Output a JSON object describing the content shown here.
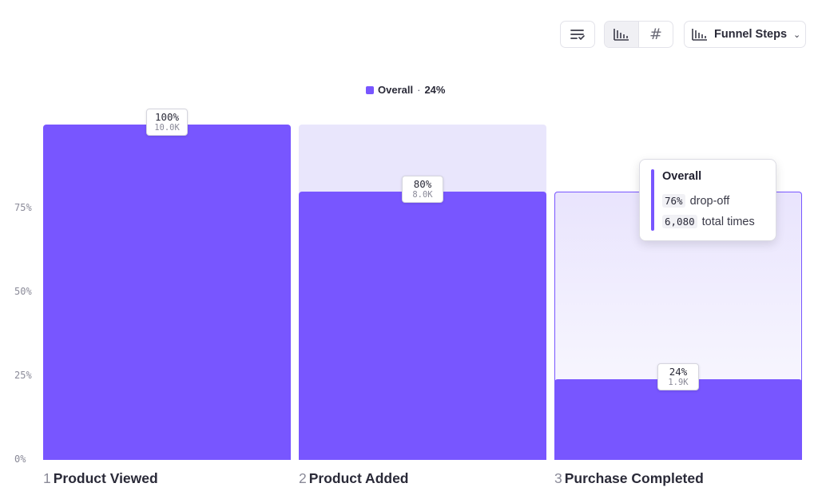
{
  "toolbar": {
    "sort_icon": "sort-list-icon",
    "view_toggle": {
      "active": "bar-chart",
      "options": [
        "bar-chart-icon",
        "hash-icon"
      ],
      "hash_glyph": "#"
    },
    "funnel_dropdown": {
      "label": "Funnel Steps",
      "icon": "bar-chart-icon",
      "chevron": "⌄"
    }
  },
  "legend": {
    "series": "Overall",
    "separator": "·",
    "value": "24%",
    "color": "#7856ff"
  },
  "chart_data": {
    "type": "bar",
    "title": "",
    "xlabel": "",
    "ylabel": "",
    "ylim": [
      0,
      100
    ],
    "y_ticks": [
      "0%",
      "25%",
      "50%",
      "75%"
    ],
    "categories": [
      "Product Viewed",
      "Product Added",
      "Purchase Completed"
    ],
    "step_numbers": [
      "1",
      "2",
      "3"
    ],
    "values": [
      100,
      80,
      24
    ],
    "labels": [
      {
        "pct": "100%",
        "count": "10.0K"
      },
      {
        "pct": "80%",
        "count": "8.0K"
      },
      {
        "pct": "24%",
        "count": "1.9K"
      }
    ],
    "series": [
      {
        "name": "Overall",
        "values": [
          100,
          80,
          24
        ]
      }
    ],
    "colors": {
      "bar": "#7856ff",
      "background": "#e9e6fc"
    }
  },
  "tooltip": {
    "title": "Overall",
    "dropoff_value": "76%",
    "dropoff_label": "drop-off",
    "total_value": "6,080",
    "total_label": "total times"
  }
}
